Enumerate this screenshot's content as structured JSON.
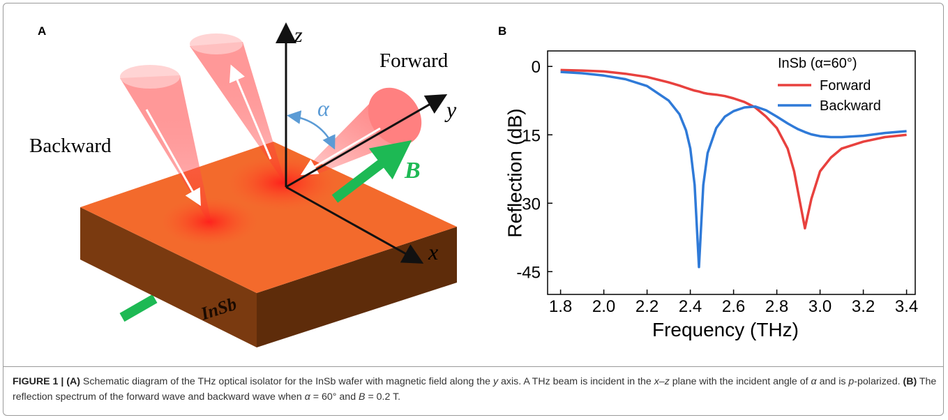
{
  "panel_a": {
    "label": "A",
    "diagram": {
      "z": "z",
      "y": "y",
      "x": "x",
      "alpha": "α",
      "forward": "Forward",
      "backward": "Backward",
      "field": "B",
      "material": "InSb"
    }
  },
  "panel_b_label": "B",
  "chart_data": {
    "type": "line",
    "xlabel": "Frequency (THz)",
    "ylabel": "Reflection (dB)",
    "legend_title": "InSb (α=60°)",
    "legend_position": "upper right",
    "x": [
      1.8,
      1.9,
      2.0,
      2.1,
      2.2,
      2.3,
      2.35,
      2.38,
      2.4,
      2.42,
      2.44,
      2.46,
      2.48,
      2.52,
      2.56,
      2.6,
      2.65,
      2.7,
      2.75,
      2.8,
      2.85,
      2.88,
      2.9,
      2.93,
      2.96,
      3.0,
      3.05,
      3.1,
      3.2,
      3.3,
      3.4
    ],
    "series": [
      {
        "name": "Forward",
        "color": "#e8413e",
        "values": [
          -0.8,
          -0.9,
          -1.1,
          -1.6,
          -2.3,
          -3.5,
          -4.2,
          -4.7,
          -5,
          -5.3,
          -5.5,
          -5.8,
          -6,
          -6.2,
          -6.5,
          -7,
          -7.8,
          -9,
          -11,
          -13.5,
          -18,
          -23,
          -28,
          -35.5,
          -29,
          -23,
          -20,
          -18,
          -16.5,
          -15.5,
          -15
        ]
      },
      {
        "name": "Backward",
        "color": "#2f7ad8",
        "values": [
          -1.2,
          -1.5,
          -2,
          -2.8,
          -4.3,
          -7.5,
          -10.5,
          -14,
          -18,
          -26,
          -44,
          -26,
          -19,
          -13.5,
          -11,
          -9.8,
          -9,
          -8.8,
          -9.6,
          -11,
          -12.5,
          -13.3,
          -13.8,
          -14.4,
          -14.9,
          -15.3,
          -15.5,
          -15.5,
          -15.2,
          -14.6,
          -14.2
        ]
      }
    ],
    "xlim": [
      1.74,
      3.44
    ],
    "ylim": [
      -50,
      3.4
    ],
    "xticks": [
      1.8,
      {
        "value": 2.0,
        "label": "2.0"
      },
      2.2,
      2.4,
      2.6,
      2.8,
      {
        "value": 3.0,
        "label": "3.0"
      },
      3.2,
      3.4
    ],
    "yticks": [
      0,
      -15,
      -30,
      -45
    ]
  },
  "caption": {
    "runs": [
      "FIGURE 1 | (A)",
      " Schematic diagram of the THz optical isolator for the InSb wafer with magnetic field along the ",
      "y",
      " axis. A THz beam is incident in the ",
      "x–z",
      " plane with the incident angle of ",
      "α",
      " and is ",
      "p",
      "-polarized. ",
      "(B)",
      " The reflection spectrum of the forward wave and backward wave when ",
      "α",
      " = 60° and ",
      "B",
      " = 0.2 T."
    ]
  }
}
